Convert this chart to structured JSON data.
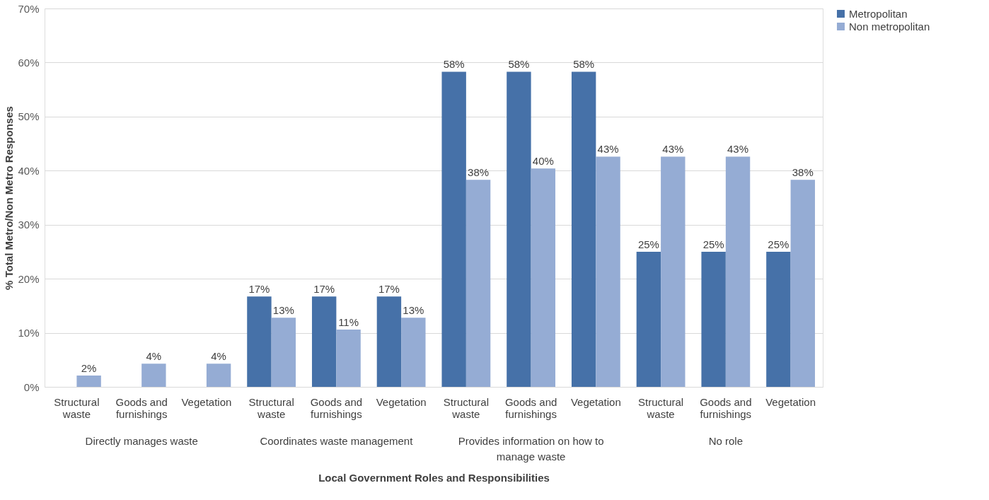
{
  "chart_data": {
    "type": "bar",
    "xlabel": "Local Government Roles and Responsibilities",
    "ylabel": "% Total Metro/Non Metro Responses",
    "categories": [
      "Structural waste",
      "Goods and furnishings",
      "Vegetation",
      "Structural waste",
      "Goods and furnishings",
      "Vegetation",
      "Structural waste",
      "Goods and furnishings",
      "Vegetation",
      "Structural waste",
      "Goods and furnishings",
      "Vegetation"
    ],
    "annotations": [
      "Directly manages waste",
      "Coordinates waste management",
      "Provides information on how to manage waste",
      "No role"
    ],
    "series": [
      {
        "name": "Metropolitan",
        "color": "#4671a8",
        "values": [
          null,
          null,
          null,
          16.7,
          16.7,
          16.7,
          58.3,
          58.3,
          58.3,
          25,
          25,
          25
        ],
        "value_labels": [
          null,
          null,
          null,
          "17%",
          "17%",
          "17%",
          "58%",
          "58%",
          "58%",
          "25%",
          "25%",
          "25%"
        ]
      },
      {
        "name": "Non metropolitan",
        "color": "#95acd4",
        "values": [
          2.1,
          4.3,
          4.3,
          12.8,
          10.6,
          12.8,
          38.3,
          40.4,
          42.6,
          42.6,
          42.6,
          38.3
        ],
        "value_labels": [
          "2%",
          "4%",
          "4%",
          "13%",
          "11%",
          "13%",
          "38%",
          "40%",
          "43%",
          "43%",
          "43%",
          "38%"
        ]
      }
    ],
    "ylim": [
      0,
      70
    ],
    "yticks": [
      {
        "value": 0,
        "label": "0%"
      },
      {
        "value": 10,
        "label": "10%"
      },
      {
        "value": 20,
        "label": "20%"
      },
      {
        "value": 30,
        "label": "30%"
      },
      {
        "value": 40,
        "label": "40%"
      },
      {
        "value": 50,
        "label": "50%"
      },
      {
        "value": 60,
        "label": "60%"
      },
      {
        "value": 70,
        "label": "70%"
      }
    ],
    "grid": "y",
    "legend": "right"
  }
}
